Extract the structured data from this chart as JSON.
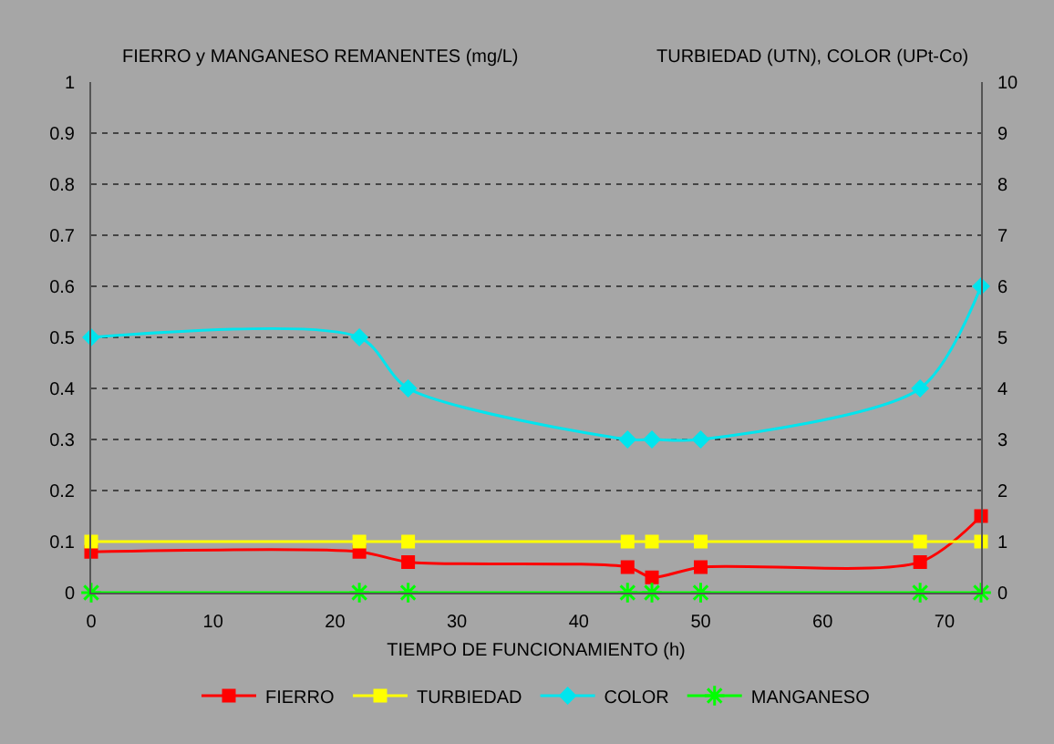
{
  "chart_data": {
    "type": "line",
    "xlabel": "TIEMPO DE FUNCIONAMIENTO (h)",
    "ylabel": "FIERRO y MANGANESO REMANENTES (mg/L)",
    "y2label": "TURBIEDAD (UTN), COLOR (UPt-Co)",
    "x": [
      0,
      22,
      26,
      44,
      46,
      50,
      68,
      73
    ],
    "series": [
      {
        "name": "FIERRO",
        "color": "#ff0000",
        "marker": "square",
        "values": [
          0.08,
          0.08,
          0.06,
          0.05,
          0.03,
          0.05,
          0.06,
          0.15
        ]
      },
      {
        "name": "TURBIEDAD",
        "color": "#ffff00",
        "marker": "square",
        "axis": "y2",
        "values": [
          1,
          1,
          1,
          1,
          1,
          1,
          1,
          1
        ]
      },
      {
        "name": "COLOR",
        "color": "#00e5ee",
        "marker": "diamond",
        "axis": "y2",
        "values": [
          5,
          5,
          4,
          3,
          3,
          3,
          4,
          6
        ]
      },
      {
        "name": "MANGANESO",
        "color": "#00ff00",
        "marker": "cross",
        "values": [
          0,
          0,
          0,
          0,
          0,
          0,
          0,
          0
        ]
      }
    ],
    "xlim": [
      0,
      73
    ],
    "xticks": [
      0,
      10,
      20,
      30,
      40,
      50,
      60,
      70
    ],
    "ylim": [
      0,
      1
    ],
    "yticks": [
      0,
      0.1,
      0.2,
      0.3,
      0.4,
      0.5,
      0.6,
      0.7,
      0.8,
      0.9,
      1
    ],
    "y2lim": [
      0,
      10
    ],
    "y2ticks": [
      0,
      1,
      2,
      3,
      4,
      5,
      6,
      7,
      8,
      9,
      10
    ],
    "grid": "y",
    "legend": "bottom"
  }
}
